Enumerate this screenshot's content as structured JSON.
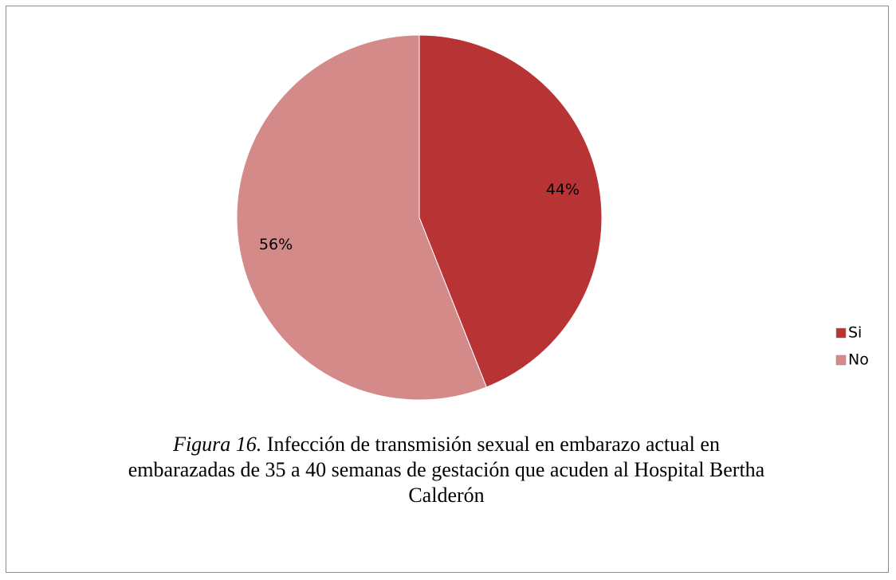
{
  "chart_data": {
    "type": "pie",
    "categories": [
      "Si",
      "No"
    ],
    "values": [
      44,
      56
    ],
    "value_labels": [
      "44%",
      "56%"
    ],
    "colors": [
      "#b83434",
      "#d58a8a"
    ],
    "legend": "right",
    "caption_label": "Figura 16.",
    "caption": "Infección de transmisión sexual en embarazo actual en embarazadas de 35 a 40 semanas de gestación que acuden al Hospital Bertha Calderón"
  }
}
